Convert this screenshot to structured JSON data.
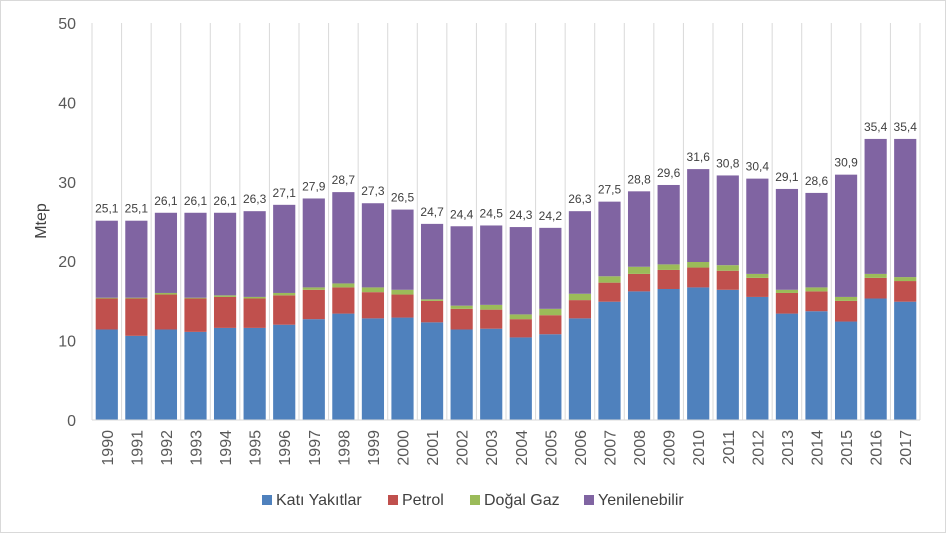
{
  "chart_data": {
    "type": "bar",
    "stacked": true,
    "title": "",
    "xlabel": "",
    "ylabel": "Mtep",
    "ylim": [
      0,
      50
    ],
    "yticks": [
      0,
      10,
      20,
      30,
      40,
      50
    ],
    "grid": "vertical",
    "legend_position": "bottom",
    "categories": [
      "1990",
      "1991",
      "1992",
      "1993",
      "1994",
      "1995",
      "1996",
      "1997",
      "1998",
      "1999",
      "2000",
      "2001",
      "2002",
      "2003",
      "2004",
      "2005",
      "2006",
      "2007",
      "2008",
      "2009",
      "2010",
      "2011",
      "2012",
      "2013",
      "2014",
      "2015",
      "2016",
      "2017"
    ],
    "series": [
      {
        "name": "Katı Yakıtlar",
        "color": "#4f81bd",
        "values": [
          11.4,
          10.6,
          11.4,
          11.1,
          11.6,
          11.6,
          12.0,
          12.7,
          13.4,
          12.8,
          12.9,
          12.3,
          11.4,
          11.5,
          10.4,
          10.8,
          12.8,
          14.9,
          16.2,
          16.5,
          16.7,
          16.4,
          15.5,
          13.4,
          13.7,
          12.4,
          15.3,
          14.9
        ]
      },
      {
        "name": "Petrol",
        "color": "#c0504d",
        "values": [
          3.9,
          4.7,
          4.4,
          4.2,
          3.9,
          3.7,
          3.7,
          3.7,
          3.3,
          3.3,
          2.9,
          2.7,
          2.6,
          2.4,
          2.3,
          2.4,
          2.3,
          2.4,
          2.2,
          2.4,
          2.5,
          2.4,
          2.4,
          2.6,
          2.5,
          2.6,
          2.6,
          2.6
        ]
      },
      {
        "name": "Doğal Gaz",
        "color": "#9bbb59",
        "values": [
          0.1,
          0.1,
          0.2,
          0.1,
          0.2,
          0.2,
          0.3,
          0.3,
          0.5,
          0.6,
          0.6,
          0.2,
          0.4,
          0.6,
          0.6,
          0.8,
          0.8,
          0.8,
          0.9,
          0.7,
          0.7,
          0.7,
          0.5,
          0.4,
          0.5,
          0.5,
          0.5,
          0.5
        ]
      },
      {
        "name": "Yenilenebilir",
        "color": "#8064a2",
        "values": [
          9.7,
          9.7,
          10.1,
          10.7,
          10.4,
          10.8,
          11.1,
          11.2,
          11.5,
          10.6,
          10.1,
          9.5,
          10.0,
          10.0,
          11.0,
          10.2,
          10.4,
          9.4,
          9.5,
          10.0,
          11.7,
          11.3,
          12.0,
          12.7,
          11.9,
          15.4,
          17.0,
          17.4
        ]
      }
    ],
    "totals": [
      25.1,
      25.1,
      26.1,
      26.1,
      26.1,
      26.3,
      27.1,
      27.9,
      28.7,
      27.3,
      26.5,
      24.7,
      24.4,
      24.5,
      24.3,
      24.2,
      26.3,
      27.5,
      28.8,
      29.6,
      31.6,
      30.8,
      30.4,
      29.1,
      28.6,
      30.9,
      35.4,
      35.4
    ],
    "total_labels": [
      "25,1",
      "25,1",
      "26,1",
      "26,1",
      "26,1",
      "26,3",
      "27,1",
      "27,9",
      "28,7",
      "27,3",
      "26,5",
      "24,7",
      "24,4",
      "24,5",
      "24,3",
      "24,2",
      "26,3",
      "27,5",
      "28,8",
      "29,6",
      "31,6",
      "30,8",
      "30,4",
      "29,1",
      "28,6",
      "30,9",
      "35,4",
      "35,4"
    ]
  }
}
